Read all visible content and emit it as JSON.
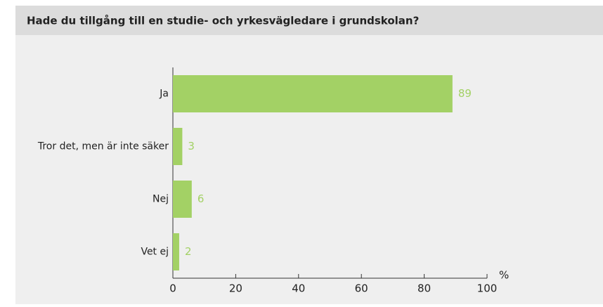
{
  "chart_data": {
    "type": "bar",
    "orientation": "horizontal",
    "title": "Hade du tillgång till en studie- och yrkesvägledare i grundskolan?",
    "categories": [
      "Ja",
      "Tror det, men är inte säker",
      "Nej",
      "Vet ej"
    ],
    "values": [
      89,
      3,
      6,
      2
    ],
    "color": "#a3d165",
    "xlim": [
      0,
      100
    ],
    "xticks": [
      0,
      20,
      40,
      60,
      80,
      100
    ],
    "xlabel": "%"
  }
}
